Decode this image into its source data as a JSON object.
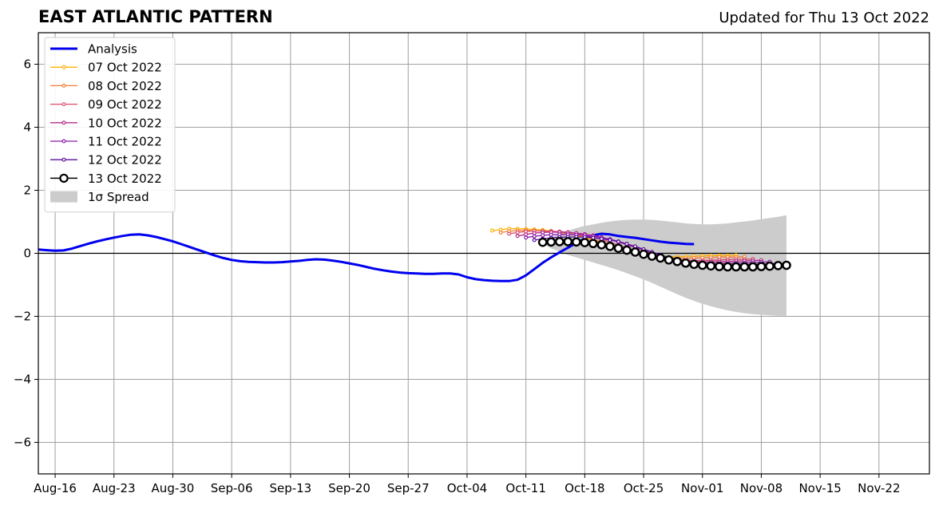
{
  "header": {
    "title": "EAST ATLANTIC PATTERN",
    "subtitle": "Updated for Thu 13 Oct 2022"
  },
  "chart_data": {
    "type": "line",
    "title": "EAST ATLANTIC PATTERN",
    "subtitle": "Updated for Thu 13 Oct 2022",
    "xlabel": "",
    "ylabel": "",
    "x_range": [
      "2022-08-14",
      "2022-11-28"
    ],
    "ylim": [
      -7,
      7
    ],
    "y_ticks": [
      -6,
      -4,
      -2,
      0,
      2,
      4,
      6
    ],
    "y_tick_labels": [
      "−6",
      "−4",
      "−2",
      "0",
      "2",
      "4",
      "6"
    ],
    "x_ticks": [
      "2022-08-16",
      "2022-08-23",
      "2022-08-30",
      "2022-09-06",
      "2022-09-13",
      "2022-09-20",
      "2022-09-27",
      "2022-10-04",
      "2022-10-11",
      "2022-10-18",
      "2022-10-25",
      "2022-11-01",
      "2022-11-08",
      "2022-11-15",
      "2022-11-22"
    ],
    "x_tick_labels": [
      "Aug-16",
      "Aug-23",
      "Aug-30",
      "Sep-06",
      "Sep-13",
      "Sep-20",
      "Sep-27",
      "Oct-04",
      "Oct-11",
      "Oct-18",
      "Oct-25",
      "Nov-01",
      "Nov-08",
      "Nov-15",
      "Nov-22"
    ],
    "grid": true,
    "legend_position": "top-left",
    "analysis": {
      "name": "Analysis",
      "color": "#0000ee",
      "start": "2022-08-14",
      "values": [
        0.12,
        0.1,
        0.08,
        0.09,
        0.15,
        0.23,
        0.31,
        0.38,
        0.44,
        0.5,
        0.55,
        0.59,
        0.6,
        0.57,
        0.52,
        0.45,
        0.38,
        0.29,
        0.2,
        0.11,
        0.02,
        -0.07,
        -0.15,
        -0.21,
        -0.25,
        -0.27,
        -0.28,
        -0.29,
        -0.29,
        -0.28,
        -0.26,
        -0.24,
        -0.21,
        -0.19,
        -0.2,
        -0.23,
        -0.27,
        -0.32,
        -0.37,
        -0.43,
        -0.49,
        -0.54,
        -0.58,
        -0.61,
        -0.63,
        -0.64,
        -0.65,
        -0.65,
        -0.64,
        -0.64,
        -0.67,
        -0.76,
        -0.82,
        -0.85,
        -0.87,
        -0.88,
        -0.88,
        -0.84,
        -0.7,
        -0.5,
        -0.3,
        -0.13,
        0.03,
        0.18,
        0.33,
        0.47,
        0.57,
        0.62,
        0.6,
        0.55,
        0.52,
        0.49,
        0.45,
        0.41,
        0.37,
        0.34,
        0.32,
        0.3,
        0.29
      ]
    },
    "forecasts": [
      {
        "name": "07 Oct 2022",
        "color": "#ffb000",
        "start": "2022-10-07",
        "values": [
          0.72,
          0.75,
          0.78,
          0.78,
          0.77,
          0.76,
          0.74,
          0.71,
          0.67,
          0.62,
          0.56,
          0.49,
          0.41,
          0.32,
          0.23,
          0.14,
          0.06,
          -0.01,
          -0.06,
          -0.1,
          -0.12,
          -0.12,
          -0.11,
          -0.1,
          -0.09,
          -0.08,
          -0.07,
          -0.07,
          -0.07,
          -0.06
        ]
      },
      {
        "name": "08 Oct 2022",
        "color": "#f57c34",
        "start": "2022-10-08",
        "values": [
          0.66,
          0.7,
          0.72,
          0.73,
          0.72,
          0.7,
          0.68,
          0.66,
          0.63,
          0.58,
          0.52,
          0.45,
          0.37,
          0.28,
          0.19,
          0.1,
          0.02,
          -0.05,
          -0.1,
          -0.13,
          -0.15,
          -0.16,
          -0.16,
          -0.15,
          -0.14,
          -0.13,
          -0.12,
          -0.12,
          -0.12,
          -0.11
        ]
      },
      {
        "name": "09 Oct 2022",
        "color": "#dc4d6a",
        "start": "2022-10-09",
        "values": [
          0.62,
          0.66,
          0.69,
          0.71,
          0.71,
          0.7,
          0.69,
          0.67,
          0.63,
          0.58,
          0.51,
          0.44,
          0.35,
          0.26,
          0.17,
          0.08,
          0.0,
          -0.07,
          -0.13,
          -0.17,
          -0.2,
          -0.22,
          -0.23,
          -0.23,
          -0.22,
          -0.21,
          -0.2,
          -0.19,
          -0.19,
          -0.18
        ]
      },
      {
        "name": "10 Oct 2022",
        "color": "#b22b8a",
        "start": "2022-10-10",
        "values": [
          0.55,
          0.6,
          0.64,
          0.66,
          0.67,
          0.67,
          0.66,
          0.64,
          0.61,
          0.57,
          0.51,
          0.44,
          0.36,
          0.27,
          0.18,
          0.09,
          0.0,
          -0.08,
          -0.15,
          -0.2,
          -0.24,
          -0.26,
          -0.27,
          -0.27,
          -0.27,
          -0.26,
          -0.25,
          -0.24,
          -0.23,
          -0.22
        ]
      },
      {
        "name": "11 Oct 2022",
        "color": "#8a1bab",
        "start": "2022-10-11",
        "values": [
          0.5,
          0.54,
          0.57,
          0.59,
          0.6,
          0.6,
          0.59,
          0.57,
          0.54,
          0.5,
          0.45,
          0.38,
          0.3,
          0.21,
          0.12,
          0.03,
          -0.06,
          -0.14,
          -0.2,
          -0.25,
          -0.29,
          -0.31,
          -0.32,
          -0.32,
          -0.32,
          -0.31,
          -0.3,
          -0.29,
          -0.28,
          -0.27
        ]
      },
      {
        "name": "12 Oct 2022",
        "color": "#5a0fa0",
        "start": "2022-10-12",
        "values": [
          0.42,
          0.46,
          0.49,
          0.51,
          0.52,
          0.52,
          0.51,
          0.49,
          0.46,
          0.42,
          0.37,
          0.3,
          0.22,
          0.13,
          0.04,
          -0.05,
          -0.13,
          -0.2,
          -0.26,
          -0.31,
          -0.34,
          -0.36,
          -0.37,
          -0.37,
          -0.37,
          -0.36,
          -0.35,
          -0.34,
          -0.33,
          -0.32
        ]
      },
      {
        "name": "13 Oct 2022",
        "color": "#000000",
        "start": "2022-10-13",
        "values": [
          0.35,
          0.36,
          0.37,
          0.37,
          0.36,
          0.34,
          0.31,
          0.27,
          0.22,
          0.16,
          0.1,
          0.04,
          -0.03,
          -0.09,
          -0.15,
          -0.21,
          -0.26,
          -0.31,
          -0.35,
          -0.38,
          -0.4,
          -0.42,
          -0.43,
          -0.43,
          -0.43,
          -0.43,
          -0.42,
          -0.41,
          -0.39,
          -0.38
        ]
      }
    ],
    "spread": {
      "name": "1σ Spread",
      "color": "#cccccc",
      "start": "2022-10-13",
      "upper": [
        0.35,
        0.5,
        0.62,
        0.72,
        0.8,
        0.87,
        0.92,
        0.97,
        1.01,
        1.04,
        1.06,
        1.07,
        1.07,
        1.06,
        1.04,
        1.01,
        0.98,
        0.95,
        0.93,
        0.92,
        0.92,
        0.93,
        0.95,
        0.98,
        1.01,
        1.04,
        1.08,
        1.12,
        1.16,
        1.21
      ],
      "lower": [
        0.3,
        0.16,
        0.05,
        -0.05,
        -0.13,
        -0.21,
        -0.29,
        -0.37,
        -0.45,
        -0.54,
        -0.63,
        -0.73,
        -0.83,
        -0.94,
        -1.06,
        -1.18,
        -1.3,
        -1.41,
        -1.51,
        -1.6,
        -1.68,
        -1.75,
        -1.81,
        -1.86,
        -1.9,
        -1.93,
        -1.95,
        -1.97,
        -1.98,
        -1.98
      ]
    },
    "legend": [
      {
        "label": "Analysis",
        "color": "#0000ee",
        "kind": "thick-line"
      },
      {
        "label": "07 Oct 2022",
        "color": "#ffb000",
        "kind": "line-marker"
      },
      {
        "label": "08 Oct 2022",
        "color": "#f57c34",
        "kind": "line-marker"
      },
      {
        "label": "09 Oct 2022",
        "color": "#dc4d6a",
        "kind": "line-marker"
      },
      {
        "label": "10 Oct 2022",
        "color": "#b22b8a",
        "kind": "line-marker"
      },
      {
        "label": "11 Oct 2022",
        "color": "#8a1bab",
        "kind": "line-marker"
      },
      {
        "label": "12 Oct 2022",
        "color": "#5a0fa0",
        "kind": "line-marker"
      },
      {
        "label": "13 Oct 2022",
        "color": "#000000",
        "kind": "big-marker"
      },
      {
        "label": "1σ Spread",
        "color": "#cccccc",
        "kind": "patch"
      }
    ]
  }
}
